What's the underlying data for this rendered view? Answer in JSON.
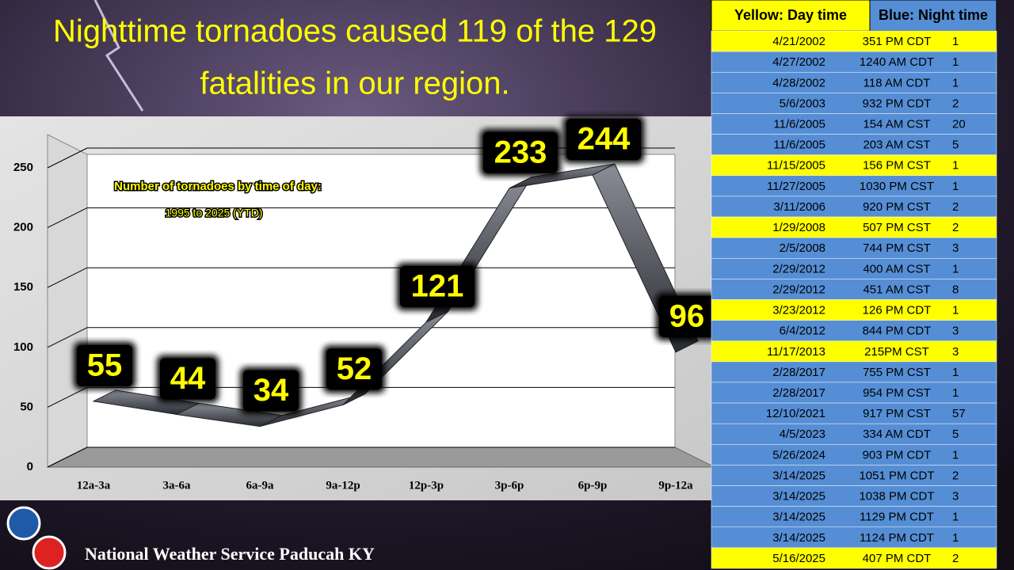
{
  "title": "Nighttime tornadoes caused 119 of the 129 fatalities in our region.",
  "footer": "National Weather Service Paducah KY",
  "chart_data": {
    "type": "line",
    "annotations": [
      "Number of tornadoes by time of day:",
      "1995 to 2025 (YTD)"
    ],
    "categories": [
      "12a-3a",
      "3a-6a",
      "6a-9a",
      "9a-12p",
      "12p-3p",
      "3p-6p",
      "6p-9p",
      "9p-12a"
    ],
    "values": [
      55,
      44,
      34,
      52,
      121,
      233,
      244,
      96
    ],
    "color": "#3a3d45",
    "ylim": [
      0,
      250
    ],
    "yticks": [
      0,
      50,
      100,
      150,
      200,
      250
    ],
    "grid": true
  },
  "table": {
    "legend": [
      {
        "label": "Yellow: Day time",
        "color": "#ffff00"
      },
      {
        "label": "Blue: Night time",
        "color": "#558ed5"
      }
    ],
    "rows": [
      {
        "date": "4/21/2002",
        "time": "351 PM CDT",
        "deaths": 1,
        "color": "#ffff00"
      },
      {
        "date": "4/27/2002",
        "time": "1240 AM CDT",
        "deaths": 1,
        "color": "#558ed5"
      },
      {
        "date": "4/28/2002",
        "time": "118 AM CDT",
        "deaths": 1,
        "color": "#558ed5"
      },
      {
        "date": "5/6/2003",
        "time": "932 PM CDT",
        "deaths": 2,
        "color": "#558ed5"
      },
      {
        "date": "11/6/2005",
        "time": "154 AM CST",
        "deaths": 20,
        "color": "#558ed5"
      },
      {
        "date": "11/6/2005",
        "time": "203 AM CST",
        "deaths": 5,
        "color": "#558ed5"
      },
      {
        "date": "11/15/2005",
        "time": "156 PM CST",
        "deaths": 1,
        "color": "#ffff00"
      },
      {
        "date": "11/27/2005",
        "time": "1030 PM CST",
        "deaths": 1,
        "color": "#558ed5"
      },
      {
        "date": "3/11/2006",
        "time": "920 PM CST",
        "deaths": 2,
        "color": "#558ed5"
      },
      {
        "date": "1/29/2008",
        "time": "507 PM CST",
        "deaths": 2,
        "color": "#ffff00"
      },
      {
        "date": "2/5/2008",
        "time": "744 PM CST",
        "deaths": 3,
        "color": "#558ed5"
      },
      {
        "date": "2/29/2012",
        "time": "400 AM CST",
        "deaths": 1,
        "color": "#558ed5"
      },
      {
        "date": "2/29/2012",
        "time": "451 AM CST",
        "deaths": 8,
        "color": "#558ed5"
      },
      {
        "date": "3/23/2012",
        "time": "126 PM CDT",
        "deaths": 1,
        "color": "#ffff00"
      },
      {
        "date": "6/4/2012",
        "time": "844 PM CDT",
        "deaths": 3,
        "color": "#558ed5"
      },
      {
        "date": "11/17/2013",
        "time": "215PM CST",
        "deaths": 3,
        "color": "#ffff00"
      },
      {
        "date": "2/28/2017",
        "time": "755 PM CST",
        "deaths": 1,
        "color": "#558ed5"
      },
      {
        "date": "2/28/2017",
        "time": "954 PM CST",
        "deaths": 1,
        "color": "#558ed5"
      },
      {
        "date": "12/10/2021",
        "time": "917 PM CST",
        "deaths": 57,
        "color": "#558ed5"
      },
      {
        "date": "4/5/2023",
        "time": "334 AM CDT",
        "deaths": 5,
        "color": "#558ed5"
      },
      {
        "date": "5/26/2024",
        "time": "903 PM CDT",
        "deaths": 1,
        "color": "#558ed5"
      },
      {
        "date": "3/14/2025",
        "time": "1051 PM CDT",
        "deaths": 2,
        "color": "#558ed5"
      },
      {
        "date": "3/14/2025",
        "time": "1038 PM CDT",
        "deaths": 3,
        "color": "#558ed5"
      },
      {
        "date": "3/14/2025",
        "time": "1129 PM CDT",
        "deaths": 1,
        "color": "#558ed5"
      },
      {
        "date": "3/14/2025",
        "time": "1124 PM CDT",
        "deaths": 1,
        "color": "#558ed5"
      },
      {
        "date": "5/16/2025",
        "time": "407 PM CDT",
        "deaths": 2,
        "color": "#ffff00"
      }
    ]
  }
}
